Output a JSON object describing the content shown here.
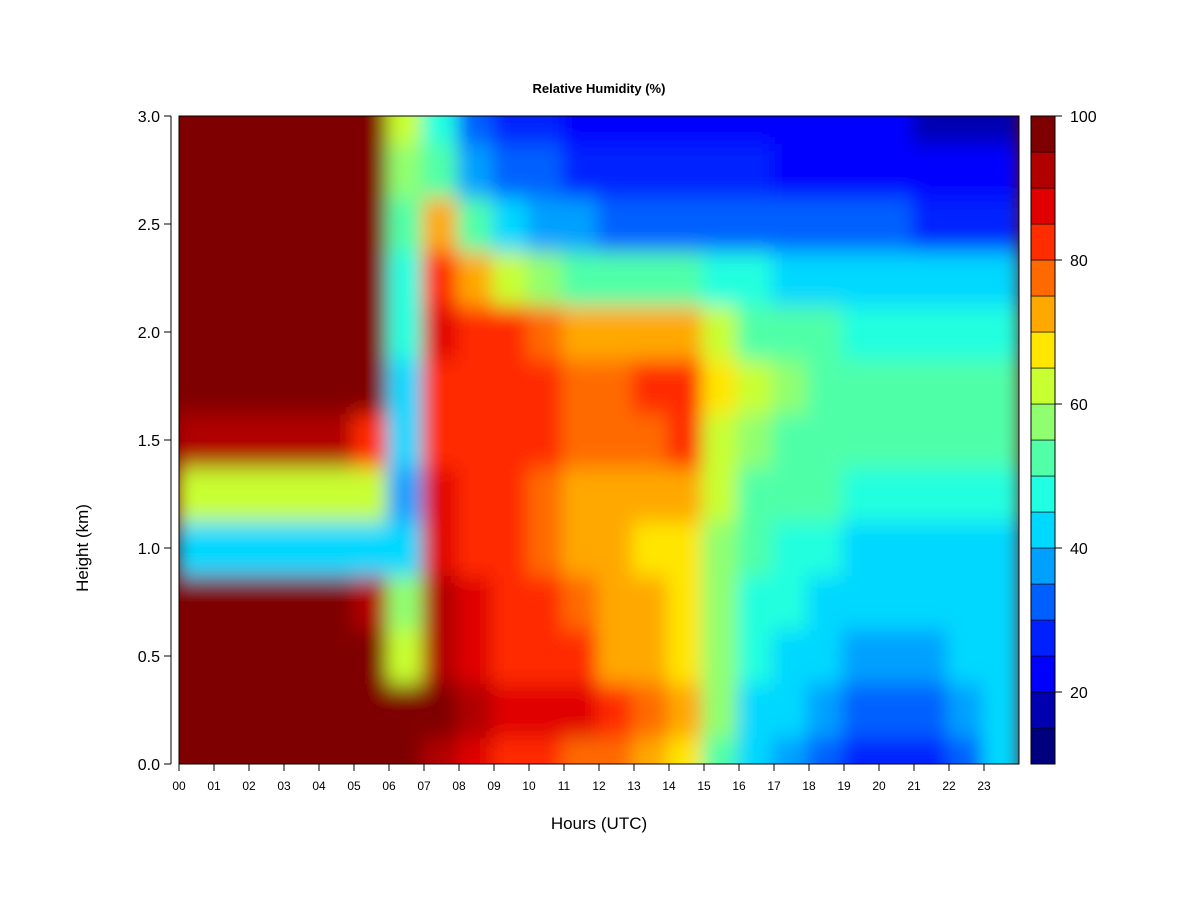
{
  "chart_data": {
    "type": "heatmap",
    "title": "Relative Humidity (%)",
    "xlabel": "Hours (UTC)",
    "ylabel": "Height (km)",
    "xlim": [
      0,
      24
    ],
    "ylim": [
      0.0,
      3.0
    ],
    "x_ticks": [
      "00",
      "01",
      "02",
      "03",
      "04",
      "05",
      "06",
      "07",
      "08",
      "09",
      "10",
      "11",
      "12",
      "13",
      "14",
      "15",
      "16",
      "17",
      "18",
      "19",
      "20",
      "21",
      "22",
      "23"
    ],
    "y_ticks": [
      "0.0",
      "0.5",
      "1.0",
      "1.5",
      "2.0",
      "2.5",
      "3.0"
    ],
    "colorbar": {
      "range": [
        10,
        100
      ],
      "step": 5,
      "tick_labels": [
        "20",
        "40",
        "60",
        "80",
        "100"
      ],
      "colors": [
        "#00007f",
        "#0000b0",
        "#0000ff",
        "#0020ff",
        "#0060ff",
        "#00a0ff",
        "#00d8ff",
        "#20ffdf",
        "#50ffa8",
        "#90ff6f",
        "#c8ff30",
        "#ffe600",
        "#ffa800",
        "#ff6a00",
        "#ff2c00",
        "#e00000",
        "#b00000",
        "#7f0000"
      ]
    },
    "hours": [
      0,
      1,
      2,
      3,
      4,
      5,
      6,
      7,
      8,
      9,
      10,
      11,
      12,
      13,
      14,
      15,
      16,
      17,
      18,
      19,
      20,
      21,
      22,
      23
    ],
    "heights_km": [
      0.0,
      0.25,
      0.5,
      0.75,
      1.0,
      1.25,
      1.5,
      1.75,
      2.0,
      2.25,
      2.5,
      2.75,
      3.0
    ],
    "values": [
      [
        98,
        98,
        98,
        98,
        98,
        98,
        97,
        92,
        85,
        82,
        80,
        78,
        75,
        72,
        65,
        52,
        40,
        35,
        30,
        25,
        25,
        28,
        34,
        40
      ],
      [
        99,
        99,
        99,
        99,
        99,
        98,
        96,
        95,
        92,
        88,
        86,
        85,
        82,
        75,
        72,
        55,
        44,
        40,
        36,
        32,
        30,
        32,
        36,
        42
      ],
      [
        99,
        99,
        99,
        99,
        99,
        98,
        62,
        93,
        88,
        84,
        82,
        80,
        74,
        70,
        68,
        55,
        46,
        44,
        40,
        38,
        36,
        38,
        40,
        42
      ],
      [
        96,
        96,
        96,
        96,
        96,
        92,
        55,
        90,
        86,
        82,
        80,
        76,
        72,
        70,
        68,
        57,
        48,
        46,
        44,
        42,
        40,
        40,
        42,
        42
      ],
      [
        44,
        44,
        44,
        44,
        44,
        44,
        40,
        88,
        84,
        80,
        76,
        74,
        70,
        68,
        66,
        58,
        50,
        48,
        46,
        44,
        44,
        44,
        44,
        44
      ],
      [
        62,
        62,
        62,
        62,
        62,
        60,
        38,
        86,
        84,
        80,
        78,
        74,
        72,
        70,
        72,
        60,
        54,
        52,
        50,
        48,
        48,
        48,
        48,
        48
      ],
      [
        90,
        90,
        90,
        90,
        92,
        82,
        42,
        84,
        84,
        82,
        80,
        76,
        76,
        78,
        82,
        64,
        58,
        54,
        52,
        50,
        50,
        50,
        50,
        50
      ],
      [
        99,
        99,
        99,
        99,
        99,
        96,
        44,
        84,
        84,
        82,
        82,
        78,
        78,
        80,
        84,
        66,
        60,
        56,
        54,
        52,
        50,
        50,
        50,
        50
      ],
      [
        99,
        99,
        99,
        99,
        99,
        98,
        46,
        86,
        84,
        80,
        76,
        72,
        70,
        72,
        70,
        60,
        54,
        52,
        50,
        48,
        48,
        48,
        48,
        48
      ],
      [
        99,
        99,
        99,
        99,
        99,
        96,
        48,
        82,
        70,
        62,
        56,
        52,
        50,
        50,
        52,
        48,
        46,
        44,
        44,
        44,
        44,
        42,
        42,
        42
      ],
      [
        99,
        99,
        99,
        99,
        99,
        98,
        52,
        70,
        50,
        42,
        38,
        36,
        34,
        34,
        34,
        34,
        34,
        32,
        30,
        30,
        30,
        28,
        28,
        28
      ],
      [
        99,
        99,
        99,
        99,
        99,
        98,
        55,
        50,
        38,
        32,
        30,
        28,
        26,
        26,
        26,
        26,
        26,
        24,
        24,
        22,
        22,
        20,
        20,
        20
      ],
      [
        99,
        99,
        99,
        99,
        99,
        98,
        60,
        45,
        34,
        28,
        26,
        24,
        22,
        22,
        22,
        22,
        22,
        22,
        20,
        20,
        20,
        18,
        18,
        18
      ]
    ]
  }
}
